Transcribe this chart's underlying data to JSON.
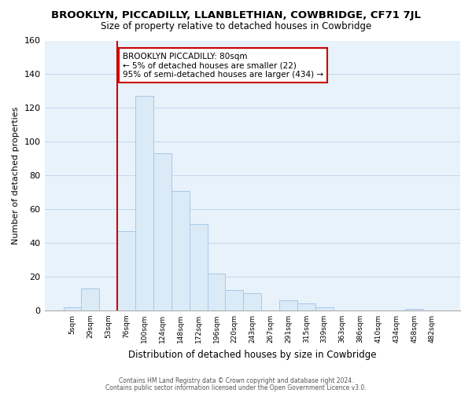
{
  "title": "BROOKLYN, PICCADILLY, LLANBLETHIAN, COWBRIDGE, CF71 7JL",
  "subtitle": "Size of property relative to detached houses in Cowbridge",
  "xlabel": "Distribution of detached houses by size in Cowbridge",
  "ylabel": "Number of detached properties",
  "bar_labels": [
    "5sqm",
    "29sqm",
    "53sqm",
    "76sqm",
    "100sqm",
    "124sqm",
    "148sqm",
    "172sqm",
    "196sqm",
    "220sqm",
    "243sqm",
    "267sqm",
    "291sqm",
    "315sqm",
    "339sqm",
    "363sqm",
    "386sqm",
    "410sqm",
    "434sqm",
    "458sqm",
    "482sqm"
  ],
  "bar_heights": [
    2,
    13,
    0,
    47,
    127,
    93,
    71,
    51,
    22,
    12,
    10,
    0,
    6,
    4,
    2,
    0,
    0,
    0,
    0,
    1,
    0
  ],
  "bar_color": "#daeaf7",
  "bar_edge_color": "#a8c8e8",
  "vline_x_index": 3,
  "annotation_text_line1": "BROOKLYN PICCADILLY: 80sqm",
  "annotation_text_line2": "← 5% of detached houses are smaller (22)",
  "annotation_text_line3": "95% of semi-detached houses are larger (434) →",
  "annotation_box_color": "#ffffff",
  "annotation_box_edge_color": "#cc0000",
  "vline_color": "#cc0000",
  "ylim": [
    0,
    160
  ],
  "yticks": [
    0,
    20,
    40,
    60,
    80,
    100,
    120,
    140,
    160
  ],
  "footer_line1": "Contains HM Land Registry data © Crown copyright and database right 2024.",
  "footer_line2": "Contains public sector information licensed under the Open Government Licence v3.0.",
  "background_color": "#ffffff",
  "plot_bg_color": "#e8f2fb",
  "grid_color": "#c0d8ee"
}
